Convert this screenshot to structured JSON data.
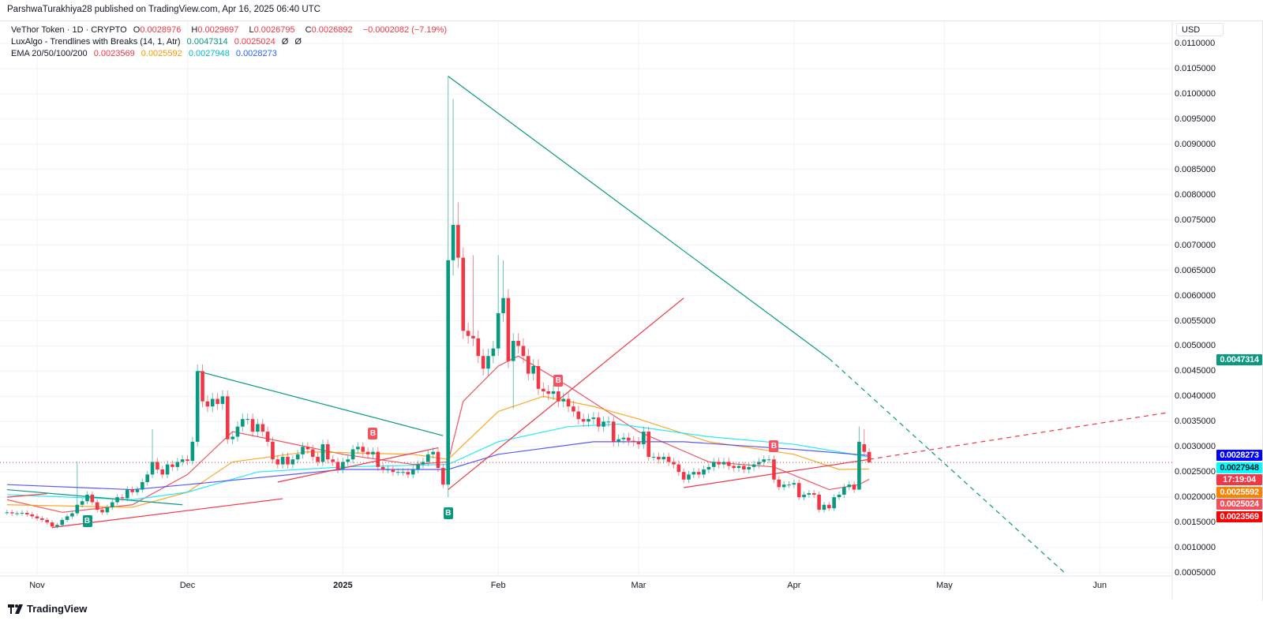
{
  "attribution": "ParshwaTurakhiya28 published on TradingView.com, Apr 16, 2025 06:40 UTC",
  "legend": {
    "symbol": "VeThor Token · 1D · CRYPTO",
    "o_label": "O",
    "o": "0.0028976",
    "h_label": "H",
    "h": "0.0029697",
    "l_label": "L",
    "l": "0.0026795",
    "c_label": "C",
    "c": "0.0026892",
    "change": "−0.0002082 (−7.19%)",
    "indicator1": "LuxAlgo - Trendlines with Breaks (14, 1, Atr)",
    "ind1_v1": "0.0047314",
    "ind1_v2": "0.0025024",
    "ind1_v3": "Ø",
    "ind1_v4": "Ø",
    "indicator2": "EMA 20/50/100/200",
    "ema20": "0.0023569",
    "ema50": "0.0025592",
    "ema100": "0.0027948",
    "ema200": "0.0028273"
  },
  "currency_button": "USD",
  "footer_logo": "TradingView",
  "chart_data": {
    "type": "candlestick",
    "title": "VeThor Token · 1D · CRYPTO",
    "colors": {
      "up": "#089981",
      "down": "#f23645",
      "ema20": "#f23645",
      "ema50": "#ff9800",
      "ema100": "#00e5ff",
      "ema200": "#3a3aff",
      "trend_down": "#089981",
      "trend_up": "#f23645"
    },
    "ylim": [
      0.0005,
      0.011
    ],
    "y_ticks": [
      "0.0005000",
      "0.0010000",
      "0.0015000",
      "0.0020000",
      "0.0025000",
      "0.0030000",
      "0.0035000",
      "0.0040000",
      "0.0045000",
      "0.0050000",
      "0.0055000",
      "0.0060000",
      "0.0065000",
      "0.0070000",
      "0.0075000",
      "0.0080000",
      "0.0085000",
      "0.0090000",
      "0.0095000",
      "0.0100000",
      "0.0105000",
      "0.0110000"
    ],
    "x_ticks": [
      {
        "label": "Nov",
        "date": "2024-11-01"
      },
      {
        "label": "Dec",
        "date": "2024-12-01"
      },
      {
        "label": "2025",
        "date": "2025-01-01",
        "bold": true
      },
      {
        "label": "Feb",
        "date": "2025-02-01"
      },
      {
        "label": "Mar",
        "date": "2025-03-01"
      },
      {
        "label": "Apr",
        "date": "2025-04-01"
      },
      {
        "label": "May",
        "date": "2025-05-01"
      },
      {
        "label": "Jun",
        "date": "2025-06-01"
      }
    ],
    "first_candle_date": "2024-10-26",
    "closes": [
      0.0017,
      0.00168,
      0.00168,
      0.00169,
      0.00166,
      0.00162,
      0.00158,
      0.00155,
      0.0015,
      0.00142,
      0.00145,
      0.00155,
      0.00162,
      0.00168,
      0.00185,
      0.00192,
      0.00205,
      0.0019,
      0.00175,
      0.0017,
      0.0018,
      0.0019,
      0.002,
      0.00198,
      0.00215,
      0.0021,
      0.00215,
      0.0023,
      0.00245,
      0.0027,
      0.00255,
      0.00245,
      0.00265,
      0.0026,
      0.0027,
      0.00275,
      0.00272,
      0.0031,
      0.0045,
      0.0039,
      0.0038,
      0.00395,
      0.00385,
      0.004,
      0.00315,
      0.0032,
      0.0034,
      0.00355,
      0.00355,
      0.0033,
      0.00345,
      0.0033,
      0.0031,
      0.00275,
      0.00265,
      0.0028,
      0.00265,
      0.00275,
      0.00285,
      0.003,
      0.00295,
      0.0028,
      0.0027,
      0.00305,
      0.00275,
      0.0027,
      0.00255,
      0.0027,
      0.00275,
      0.00295,
      0.003,
      0.0029,
      0.00285,
      0.0029,
      0.0026,
      0.00255,
      0.00255,
      0.0025,
      0.0025,
      0.0025,
      0.00245,
      0.00255,
      0.00265,
      0.0027,
      0.00285,
      0.0029,
      0.00258,
      0.00225,
      0.0067,
      0.0074,
      0.00675,
      0.0053,
      0.0052,
      0.00515,
      0.0048,
      0.00455,
      0.0048,
      0.00495,
      0.00565,
      0.00595,
      0.0047,
      0.0051,
      0.005,
      0.0048,
      0.00445,
      0.0046,
      0.00415,
      0.0041,
      0.00405,
      0.0041,
      0.0039,
      0.00395,
      0.0038,
      0.0037,
      0.00355,
      0.0035,
      0.00355,
      0.00358,
      0.0034,
      0.0035,
      0.0035,
      0.0031,
      0.00315,
      0.00318,
      0.00312,
      0.0031,
      0.00305,
      0.0033,
      0.0028,
      0.0028,
      0.00275,
      0.0028,
      0.0027,
      0.00265,
      0.0025,
      0.00235,
      0.00245,
      0.0025,
      0.00245,
      0.00255,
      0.0026,
      0.0027,
      0.00265,
      0.0027,
      0.00262,
      0.00258,
      0.00262,
      0.00255,
      0.0026,
      0.00265,
      0.0027,
      0.00275,
      0.00275,
      0.00235,
      0.0022,
      0.00225,
      0.00225,
      0.00228,
      0.002,
      0.00205,
      0.00208,
      0.00205,
      0.00175,
      0.00185,
      0.00178,
      0.002,
      0.00205,
      0.0022,
      0.00225,
      0.00215,
      0.0031,
      0.0029,
      0.0026892
    ],
    "ohlc_overrides": {
      "2024-11-09": {
        "h": 0.0027
      },
      "2024-11-24": {
        "h": 0.00335
      },
      "2025-01-22": {
        "o": 0.00225,
        "h": 0.01035,
        "l": 0.002
      },
      "2025-01-23": {
        "h": 0.0099,
        "l": 0.0064
      },
      "2025-01-24": {
        "h": 0.00785
      },
      "2025-01-27": {
        "h": 0.0068
      },
      "2025-02-01": {
        "h": 0.0068
      },
      "2025-02-02": {
        "h": 0.0067
      },
      "2025-02-04": {
        "l": 0.00375
      },
      "2025-04-14": {
        "h": 0.0034,
        "l": 0.00215
      },
      "2025-04-15": {
        "o": 0.00305,
        "h": 0.00335
      },
      "2025-04-16": {
        "o": 0.0028976,
        "h": 0.0029697,
        "l": 0.0026795
      }
    },
    "ema": {
      "ema20": [
        [
          "2024-10-26",
          0.00195
        ],
        [
          "2024-11-06",
          0.0017
        ],
        [
          "2024-11-20",
          0.00185
        ],
        [
          "2024-12-01",
          0.00245
        ],
        [
          "2024-12-10",
          0.0033
        ],
        [
          "2024-12-20",
          0.0031
        ],
        [
          "2025-01-01",
          0.00285
        ],
        [
          "2025-01-15",
          0.00265
        ],
        [
          "2025-01-22",
          0.0027
        ],
        [
          "2025-01-25",
          0.0039
        ],
        [
          "2025-02-01",
          0.0046
        ],
        [
          "2025-02-05",
          0.0048
        ],
        [
          "2025-02-15",
          0.0042
        ],
        [
          "2025-03-01",
          0.0033
        ],
        [
          "2025-03-15",
          0.0027
        ],
        [
          "2025-03-28",
          0.0026
        ],
        [
          "2025-04-08",
          0.00215
        ],
        [
          "2025-04-14",
          0.00225
        ],
        [
          "2025-04-16",
          0.0023569
        ]
      ],
      "ema50": [
        [
          "2024-10-26",
          0.00185
        ],
        [
          "2024-11-20",
          0.0018
        ],
        [
          "2024-12-01",
          0.0021
        ],
        [
          "2024-12-10",
          0.0027
        ],
        [
          "2024-12-25",
          0.0029
        ],
        [
          "2025-01-15",
          0.00285
        ],
        [
          "2025-01-22",
          0.00275
        ],
        [
          "2025-02-01",
          0.0037
        ],
        [
          "2025-02-10",
          0.004
        ],
        [
          "2025-02-20",
          0.0038
        ],
        [
          "2025-03-01",
          0.00355
        ],
        [
          "2025-03-15",
          0.0031
        ],
        [
          "2025-04-01",
          0.00285
        ],
        [
          "2025-04-10",
          0.00255
        ],
        [
          "2025-04-16",
          0.0025592
        ]
      ],
      "ema100": [
        [
          "2024-10-26",
          0.00205
        ],
        [
          "2024-11-20",
          0.00195
        ],
        [
          "2024-12-01",
          0.0021
        ],
        [
          "2024-12-15",
          0.0025
        ],
        [
          "2025-01-01",
          0.0026
        ],
        [
          "2025-01-22",
          0.00265
        ],
        [
          "2025-02-01",
          0.0031
        ],
        [
          "2025-02-15",
          0.0034
        ],
        [
          "2025-02-25",
          0.00345
        ],
        [
          "2025-03-15",
          0.0032
        ],
        [
          "2025-04-01",
          0.00305
        ],
        [
          "2025-04-16",
          0.0027948
        ]
      ],
      "ema200": [
        [
          "2024-10-26",
          0.00225
        ],
        [
          "2024-11-20",
          0.00215
        ],
        [
          "2024-12-01",
          0.00225
        ],
        [
          "2025-01-01",
          0.00255
        ],
        [
          "2025-01-22",
          0.00255
        ],
        [
          "2025-02-01",
          0.00285
        ],
        [
          "2025-02-20",
          0.0031
        ],
        [
          "2025-03-10",
          0.0031
        ],
        [
          "2025-04-01",
          0.00295
        ],
        [
          "2025-04-16",
          0.0028273
        ]
      ]
    },
    "trendlines": [
      {
        "kind": "down",
        "from": [
          "2025-01-22",
          0.01035
        ],
        "to": [
          "2025-04-08",
          0.00475
        ],
        "extend_to": [
          "2025-05-25",
          0.0005
        ]
      },
      {
        "kind": "down",
        "from": [
          "2024-12-03",
          0.0045
        ],
        "to": [
          "2025-01-21",
          0.00322
        ]
      },
      {
        "kind": "down",
        "from": [
          "2024-10-26",
          0.00215
        ],
        "to": [
          "2024-11-30",
          0.00185
        ]
      },
      {
        "kind": "up",
        "from": [
          "2024-10-26",
          0.002
        ],
        "to": [
          "2024-11-03",
          0.00207
        ]
      },
      {
        "kind": "up",
        "from": [
          "2024-11-04",
          0.0014
        ],
        "to": [
          "2024-12-20",
          0.00197
        ]
      },
      {
        "kind": "up",
        "from": [
          "2024-12-19",
          0.0023
        ],
        "to": [
          "2025-01-20",
          0.00298
        ]
      },
      {
        "kind": "up",
        "from": [
          "2025-01-22",
          0.00215
        ],
        "to": [
          "2025-03-10",
          0.00595
        ]
      },
      {
        "kind": "up",
        "from": [
          "2025-03-10",
          0.00219
        ],
        "to": [
          "2025-04-16",
          0.00275
        ],
        "extend_to": [
          "2025-06-30",
          0.00368
        ]
      }
    ],
    "break_markers": [
      {
        "date": "2024-11-11",
        "price": 0.00165,
        "side": "below",
        "type": "up",
        "label": "B"
      },
      {
        "date": "2025-01-07",
        "price": 0.00315,
        "side": "above",
        "type": "down",
        "label": "B"
      },
      {
        "date": "2025-01-22",
        "price": 0.0018,
        "side": "below",
        "type": "up",
        "label": "B"
      },
      {
        "date": "2025-02-13",
        "price": 0.0042,
        "side": "above",
        "type": "down",
        "label": "B"
      },
      {
        "date": "2025-03-28",
        "price": 0.0029,
        "side": "above",
        "type": "down",
        "label": "B"
      }
    ],
    "current_price": 0.0026892,
    "price_badges": [
      {
        "label": "0.0047314",
        "value": 0.0047314,
        "bg": "#089981",
        "fg": "#ffffff"
      },
      {
        "label": "0.0028273",
        "value": 0.0028273,
        "bg": "#0000ff",
        "fg": "#ffffff"
      },
      {
        "label": "0.0027948",
        "value": 0.0027948,
        "bg": "#00ffff",
        "fg": "#131722"
      },
      {
        "label": "17:19:04",
        "value": 0.0026892,
        "bg": "#f23645",
        "fg": "#ffffff"
      },
      {
        "label": "0.0025592",
        "value": 0.0025592,
        "bg": "#ff8000",
        "fg": "#ffffff"
      },
      {
        "label": "0.0025024",
        "value": 0.0025024,
        "bg": "#f44f5a",
        "fg": "#ffffff"
      },
      {
        "label": "0.0023569",
        "value": 0.0023569,
        "bg": "#ff0000",
        "fg": "#ffffff"
      }
    ]
  }
}
